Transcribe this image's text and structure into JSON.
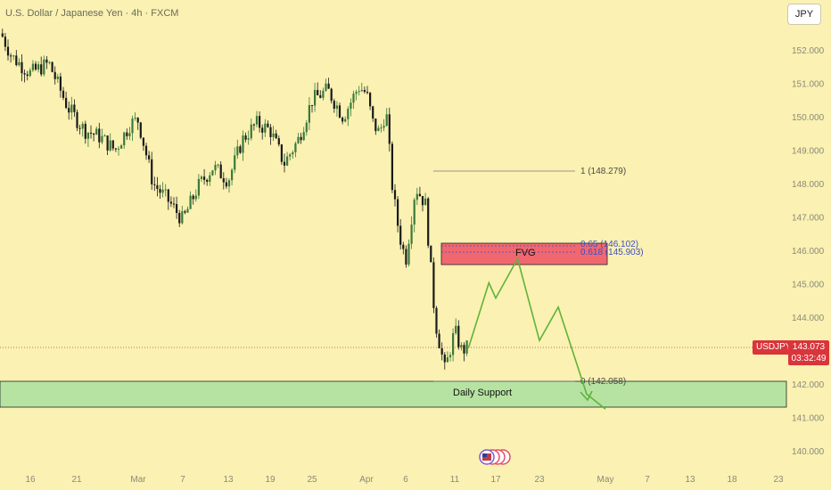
{
  "header": {
    "title": "U.S. Dollar / Japanese Yen · 4h · FXCM",
    "currency": "JPY"
  },
  "price_badge": {
    "symbol": "USDJPY",
    "price": "143.073",
    "countdown": "03:32:49"
  },
  "annotations": {
    "fvg_label": "FVG",
    "support_label": "Daily Support",
    "fib_levels": [
      {
        "label": "1 (148.279)",
        "level": 1,
        "price": 148.279
      },
      {
        "label": "0.65 (146.102)",
        "level": 0.65,
        "price": 146.102
      },
      {
        "label": "0.618 (145.903)",
        "level": 0.618,
        "price": 145.903
      },
      {
        "label": "0 (142.058)",
        "level": 0,
        "price": 142.058
      }
    ]
  },
  "colors": {
    "background": "#faf1b2",
    "up_candle": "#3a7a3a",
    "down_candle": "#1a1a1a",
    "fvg_fill": "#ef4f63",
    "support_fill": "#b6e3a2",
    "projection_line": "#5fb33d",
    "price_badge": "#d9353a"
  },
  "chart_data": {
    "type": "line",
    "title": "U.S. Dollar / Japanese Yen · 4h · FXCM",
    "xlabel": "",
    "ylabel": "",
    "ylim": [
      139.7,
      152.6
    ],
    "y_ticks": [
      140.0,
      141.0,
      142.0,
      143.0,
      144.0,
      145.0,
      146.0,
      147.0,
      148.0,
      149.0,
      150.0,
      151.0,
      152.0
    ],
    "x_ticks": [
      "16",
      "21",
      "Mar",
      "7",
      "13",
      "19",
      "25",
      "Apr",
      "6",
      "11",
      "17",
      "23",
      "May",
      "7",
      "13",
      "18",
      "23"
    ],
    "grid": false,
    "series": [
      {
        "x": [
          "Feb 13",
          "Feb 14",
          "Feb 16",
          "Feb 18",
          "Feb 20",
          "Feb 22",
          "Feb 24",
          "Feb 26",
          "Feb 28",
          "Mar 1",
          "Mar 3",
          "Mar 5",
          "Mar 7",
          "Mar 9",
          "Mar 11",
          "Mar 13",
          "Mar 15",
          "Mar 17",
          "Mar 19",
          "Mar 21",
          "Mar 23",
          "Mar 25",
          "Mar 27",
          "Mar 29",
          "Mar 31",
          "Apr 1",
          "Apr 2",
          "Apr 3",
          "Apr 4",
          "Apr 5",
          "Apr 6",
          "Apr 7",
          "Apr 8",
          "Apr 9",
          "Apr 10",
          "Apr 11",
          "Apr 12",
          "Apr 13",
          "Apr 14"
        ],
        "values": [
          152.4,
          151.8,
          151.3,
          151.6,
          150.3,
          149.6,
          149.4,
          149.0,
          149.8,
          149.9,
          148.0,
          147.5,
          146.9,
          147.9,
          148.5,
          148.1,
          149.3,
          149.8,
          149.6,
          148.6,
          149.3,
          150.5,
          150.8,
          150.0,
          150.9,
          150.7,
          149.8,
          149.5,
          150.2,
          147.8,
          146.5,
          145.7,
          147.9,
          147.4,
          143.9,
          142.4,
          143.6,
          143.0,
          143.1
        ]
      },
      {
        "x": [
          "Apr 14",
          "Apr 17",
          "Apr 18",
          "Apr 21",
          "Apr 24",
          "Apr 26",
          "Apr 29",
          "May 1"
        ],
        "values": [
          143.07,
          145.03,
          144.57,
          145.75,
          143.3,
          144.3,
          141.7,
          141.25
        ]
      }
    ]
  }
}
